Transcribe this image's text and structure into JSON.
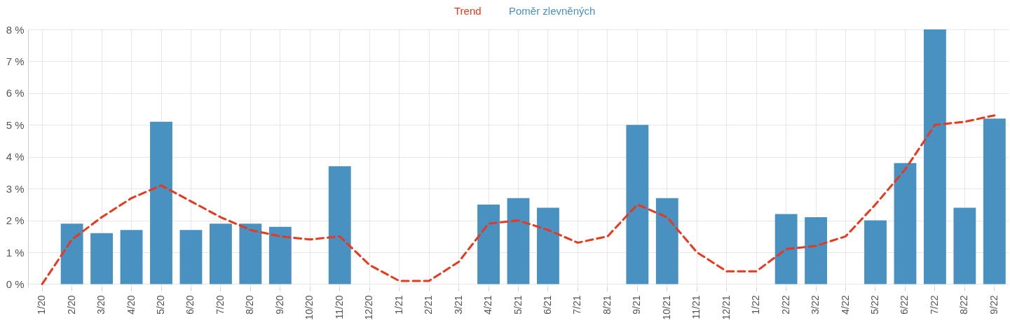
{
  "chart_data": {
    "type": "bar",
    "categories": [
      "1/20",
      "2/20",
      "3/20",
      "4/20",
      "5/20",
      "6/20",
      "7/20",
      "8/20",
      "9/20",
      "10/20",
      "11/20",
      "12/20",
      "1/21",
      "2/21",
      "3/21",
      "4/21",
      "5/21",
      "6/21",
      "7/21",
      "8/21",
      "9/21",
      "10/21",
      "11/21",
      "12/21",
      "1/22",
      "2/22",
      "3/22",
      "4/22",
      "5/22",
      "6/22",
      "7/22",
      "8/22",
      "9/22"
    ],
    "series": [
      {
        "name": "Trend",
        "type": "line",
        "line_style": "dashed",
        "color": "#e8391d",
        "values": [
          0,
          1.4,
          2.1,
          2.7,
          3.1,
          2.6,
          2.1,
          1.7,
          1.5,
          1.4,
          1.5,
          0.6,
          0.1,
          0.1,
          0.7,
          1.9,
          2.0,
          1.7,
          1.3,
          1.5,
          2.5,
          2.1,
          1.0,
          0.4,
          0.4,
          1.1,
          1.2,
          1.5,
          2.5,
          3.6,
          5.0,
          5.1,
          5.3
        ]
      },
      {
        "name": "Poměr zlevněných",
        "color": "#4891c0",
        "values": [
          0,
          1.9,
          1.6,
          1.7,
          5.1,
          1.7,
          1.9,
          1.9,
          1.8,
          0,
          3.7,
          0,
          0,
          0,
          0,
          2.5,
          2.7,
          2.4,
          0,
          0,
          5.0,
          2.7,
          0,
          0,
          0,
          2.2,
          2.1,
          0,
          2.0,
          3.8,
          8.0,
          2.4,
          5.2
        ]
      }
    ],
    "ylim": [
      -0.1,
      8
    ],
    "yticks": [
      {
        "value": 0,
        "label": "0 %"
      },
      {
        "value": 1,
        "label": "1 %"
      },
      {
        "value": 2,
        "label": "2 %"
      },
      {
        "value": 3,
        "label": "3 %"
      },
      {
        "value": 4,
        "label": "4 %"
      },
      {
        "value": 5,
        "label": "5 %"
      },
      {
        "value": 6,
        "label": "6 %"
      },
      {
        "value": 7,
        "label": "7 %"
      },
      {
        "value": 8,
        "label": "8 %"
      }
    ],
    "grid": true,
    "legend": "top",
    "marker": "none"
  }
}
